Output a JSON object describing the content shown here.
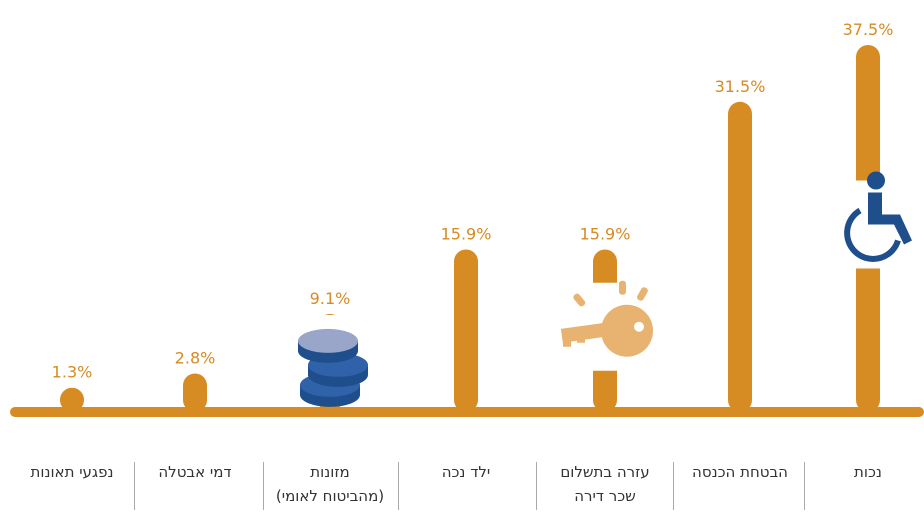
{
  "chart_data": {
    "type": "bar",
    "categories": [
      "נפגעי תאונות",
      "דמי אבטלה",
      "מזונות\n(מהביטוח לאומי)",
      "ילד נכה",
      "עזרה בתשלום\nשכר דירה",
      "הבטחת הכנסה",
      "נכות"
    ],
    "values": [
      1.3,
      2.8,
      9.1,
      15.9,
      15.9,
      31.5,
      37.5
    ],
    "value_labels": [
      "1.3%",
      "2.8%",
      "9.1%",
      "15.9%",
      "15.9%",
      "31.5%",
      "37.5%"
    ],
    "color": "#d68b23",
    "ylim": [
      0,
      37.5
    ]
  }
}
